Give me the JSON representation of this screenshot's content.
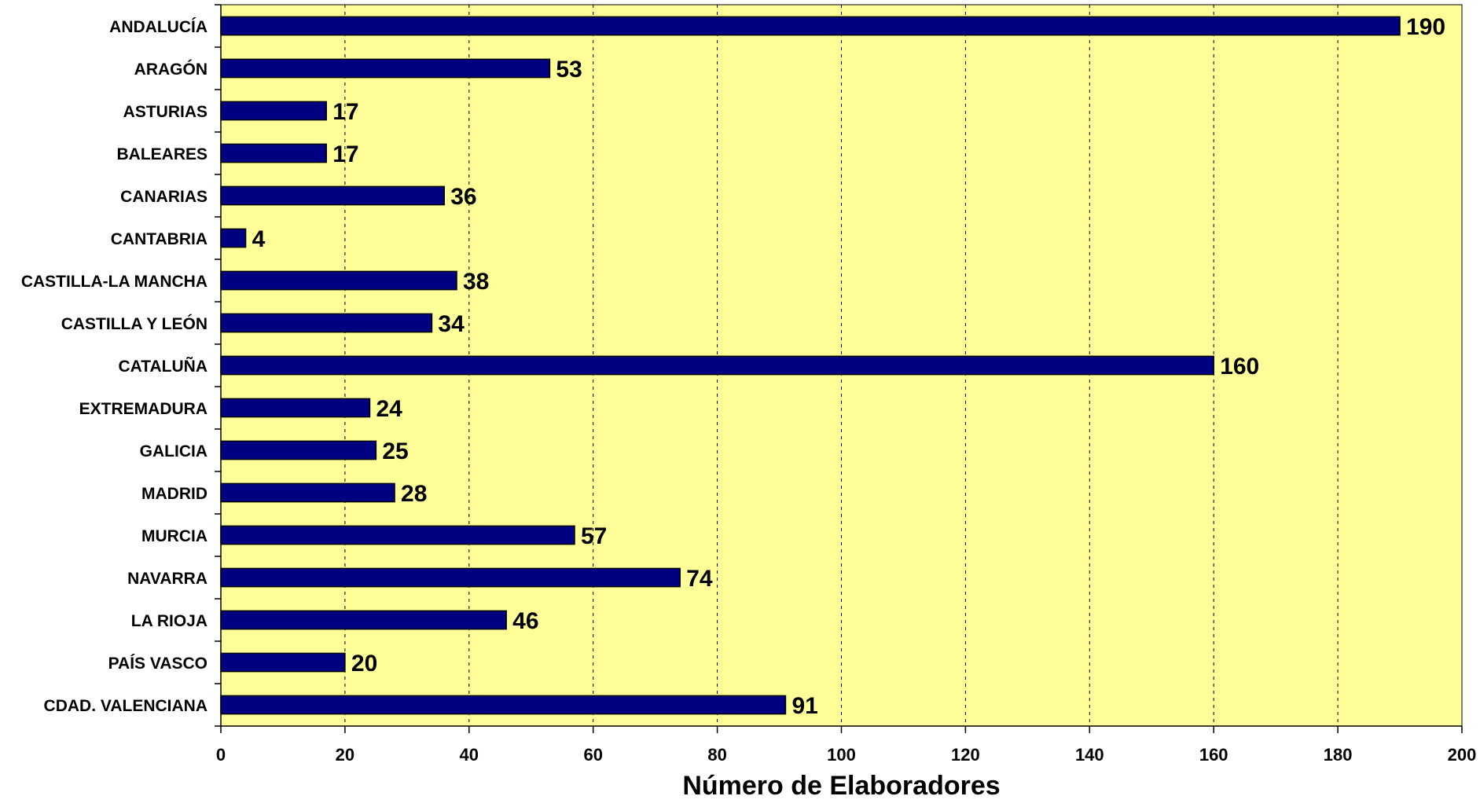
{
  "chart_data": {
    "type": "bar",
    "orientation": "horizontal",
    "categories": [
      "ANDALUCÍA",
      "ARAGÓN",
      "ASTURIAS",
      "BALEARES",
      "CANARIAS",
      "CANTABRIA",
      "CASTILLA-LA MANCHA",
      "CASTILLA Y LEÓN",
      "CATALUÑA",
      "EXTREMADURA",
      "GALICIA",
      "MADRID",
      "MURCIA",
      "NAVARRA",
      "LA RIOJA",
      "PAÍS VASCO",
      "CDAD. VALENCIANA"
    ],
    "values": [
      190,
      53,
      17,
      17,
      36,
      4,
      38,
      34,
      160,
      24,
      25,
      28,
      57,
      74,
      46,
      20,
      91
    ],
    "value_labels": [
      "190",
      "53",
      "17",
      "17",
      "36",
      "4",
      "38",
      "34",
      "160",
      "24",
      "25",
      "28",
      "57",
      "74",
      "46",
      "20",
      "91"
    ],
    "xlabel": "Número de Elaboradores",
    "ylabel": "",
    "xlim": [
      0,
      200
    ],
    "xticks": [
      "0",
      "20",
      "40",
      "60",
      "80",
      "100",
      "120",
      "140",
      "160",
      "180",
      "200"
    ],
    "grid": "vertical dashed",
    "colors": {
      "bar_fill": "#000080",
      "bar_stroke": "#000000",
      "plot_background": "#FFFF99",
      "gridline": "#000000"
    }
  }
}
